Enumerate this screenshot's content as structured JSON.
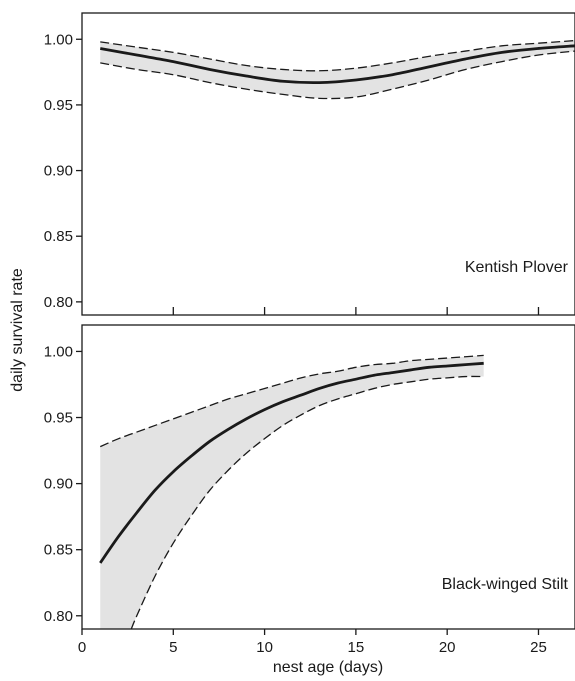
{
  "figure": {
    "ylabel": "daily survival rate",
    "xlabel": "nest age (days)",
    "x_tick_labels": [
      "0",
      "5",
      "10",
      "15",
      "20",
      "25"
    ],
    "y_tick_labels": [
      "1.00",
      "0.95",
      "0.90",
      "0.85",
      "0.80"
    ]
  },
  "chart_data": [
    {
      "type": "line",
      "label": "Kentish Plover",
      "xlim": [
        0,
        27
      ],
      "ylim": [
        0.79,
        1.02
      ],
      "x_ticks": [
        0,
        5,
        10,
        15,
        20,
        25
      ],
      "y_ticks": [
        1.0,
        0.95,
        0.9,
        0.85,
        0.8
      ],
      "x_tick_labels_shown": false,
      "x_tick_marks_top": true,
      "series": [
        {
          "role": "estimate",
          "style": "solid",
          "x": [
            1,
            3,
            5,
            7,
            9,
            11,
            13,
            15,
            17,
            19,
            21,
            23,
            25,
            27
          ],
          "y": [
            0.993,
            0.988,
            0.983,
            0.977,
            0.972,
            0.968,
            0.967,
            0.969,
            0.973,
            0.979,
            0.985,
            0.99,
            0.993,
            0.995
          ]
        },
        {
          "role": "upper 95% CI",
          "style": "dashed",
          "x": [
            1,
            3,
            5,
            7,
            9,
            11,
            13,
            15,
            17,
            19,
            21,
            23,
            25,
            27
          ],
          "y": [
            0.998,
            0.994,
            0.99,
            0.985,
            0.98,
            0.977,
            0.976,
            0.978,
            0.982,
            0.987,
            0.991,
            0.995,
            0.997,
            0.999
          ]
        },
        {
          "role": "lower 95% CI",
          "style": "dashed",
          "x": [
            1,
            3,
            5,
            7,
            9,
            11,
            13,
            15,
            17,
            19,
            21,
            23,
            25,
            27
          ],
          "y": [
            0.982,
            0.977,
            0.973,
            0.967,
            0.962,
            0.958,
            0.955,
            0.956,
            0.962,
            0.969,
            0.977,
            0.983,
            0.988,
            0.991
          ]
        }
      ]
    },
    {
      "type": "line",
      "label": "Black-winged Stilt",
      "xlim": [
        0,
        27
      ],
      "ylim": [
        0.79,
        1.02
      ],
      "x_ticks": [
        0,
        5,
        10,
        15,
        20,
        25
      ],
      "y_ticks": [
        1.0,
        0.95,
        0.9,
        0.85,
        0.8
      ],
      "x_tick_labels_shown": true,
      "series": [
        {
          "role": "estimate",
          "style": "solid",
          "x": [
            1,
            2,
            3,
            4,
            5,
            6,
            7,
            8,
            9,
            10,
            11,
            12,
            13,
            14,
            15,
            16,
            17,
            18,
            19,
            20,
            21,
            22
          ],
          "y": [
            0.84,
            0.86,
            0.878,
            0.895,
            0.909,
            0.921,
            0.932,
            0.941,
            0.949,
            0.956,
            0.962,
            0.967,
            0.972,
            0.976,
            0.979,
            0.982,
            0.984,
            0.986,
            0.988,
            0.989,
            0.99,
            0.991
          ]
        },
        {
          "role": "upper 95% CI",
          "style": "dashed",
          "x": [
            1,
            2,
            3,
            4,
            5,
            6,
            7,
            8,
            9,
            10,
            11,
            12,
            13,
            14,
            15,
            16,
            17,
            18,
            19,
            20,
            21,
            22
          ],
          "y": [
            0.928,
            0.934,
            0.939,
            0.944,
            0.949,
            0.954,
            0.959,
            0.964,
            0.968,
            0.972,
            0.976,
            0.98,
            0.983,
            0.985,
            0.988,
            0.99,
            0.991,
            0.993,
            0.994,
            0.995,
            0.996,
            0.997
          ]
        },
        {
          "role": "lower 95% CI",
          "style": "dashed",
          "x": [
            2.7,
            3,
            4,
            5,
            6,
            7,
            8,
            9,
            10,
            11,
            12,
            13,
            14,
            15,
            16,
            17,
            18,
            19,
            20,
            21,
            22
          ],
          "y": [
            0.79,
            0.8,
            0.83,
            0.855,
            0.876,
            0.895,
            0.91,
            0.923,
            0.934,
            0.944,
            0.952,
            0.959,
            0.964,
            0.968,
            0.972,
            0.975,
            0.977,
            0.979,
            0.98,
            0.981,
            0.981
          ]
        }
      ]
    }
  ]
}
